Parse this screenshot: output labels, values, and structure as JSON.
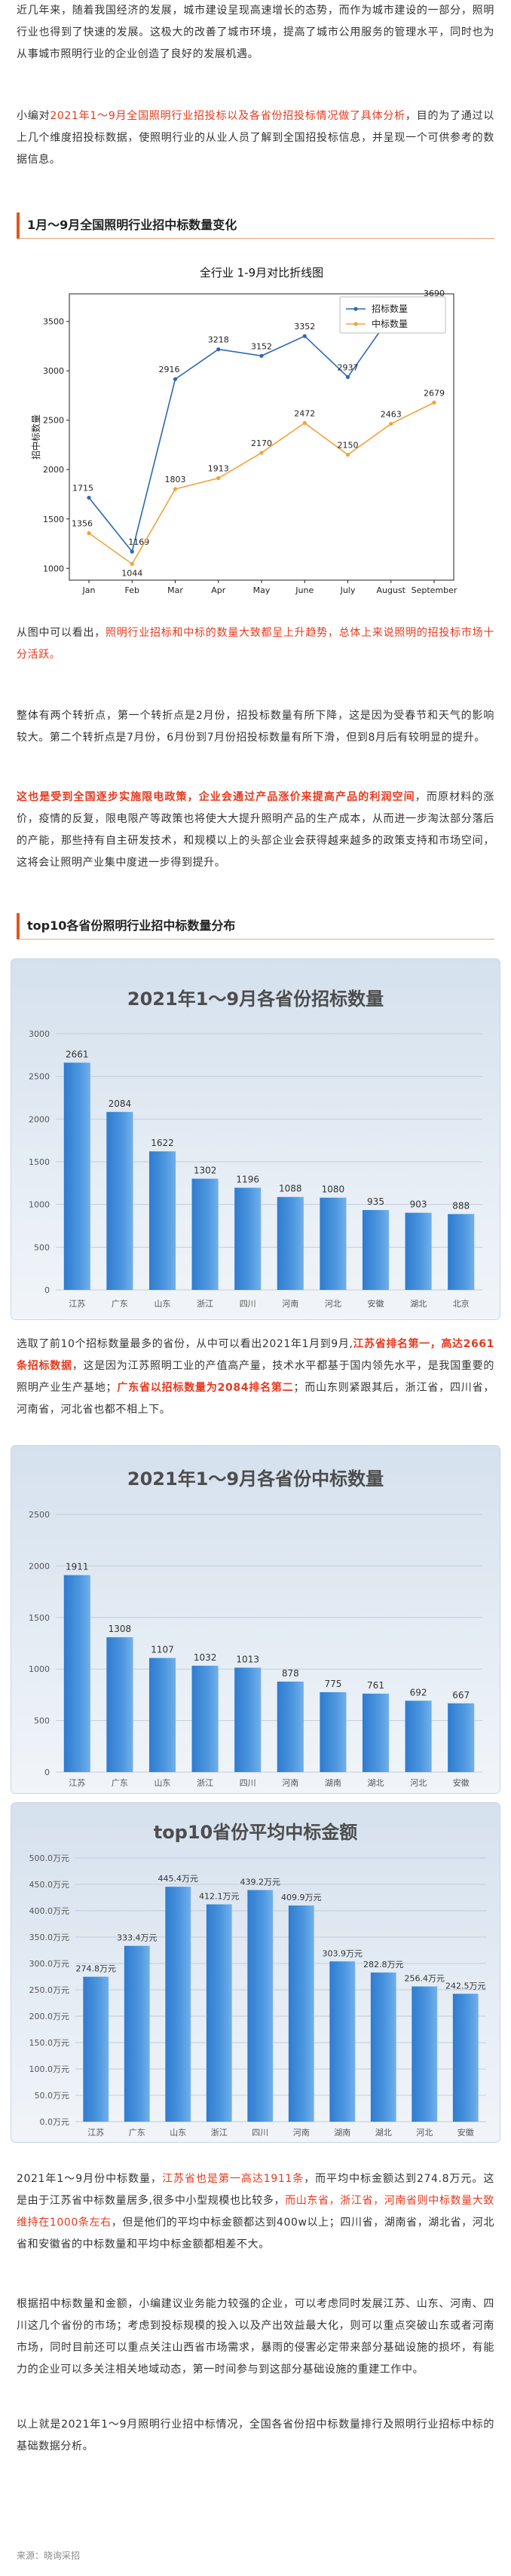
{
  "article": {
    "intro": "近几年来，随着我国经济的发展，城市建设呈现高速增长的态势，而作为城市建设的一部分，照明行业也得到了快速的发展。这极大的改善了城市环境，提高了城市公用服务的管理水平，同时也为从事城市照明行业的企业创造了良好的发展机遇。",
    "summary": [
      "小编对",
      "2021年1～9月全国照明行业招投标以及各省份招投标情况做了具体分析",
      "，目的为了通过以上几个维度招投标数据，使照明行业的从业人员了解到全国招投标信息，并呈现一个可供参考的数据信息。"
    ],
    "heading_monthly": "1月～9月全国照明行业招中标数量变化",
    "trend": [
      "从图中可以看出，",
      "照明行业招标和中标的数量大致都呈上升趋势，总体上来说照明的招投标市场十分活跃。"
    ],
    "turning_points": "整体有两个转折点，第一个转折点是2月份，招投标数量有所下降，这是因为受春节和天气的影响较大。第二个转折点是7月份，6月份到7月份招投标数量有所下滑，但到8月后有较明显的提升。",
    "policy": [
      "这也是受到全国逐步实施限电政策，企业会通过产品涨价来提高产品的利润空间",
      "，而原材料的涨价，疫情的反复，限电限产等政策也将使大大提升照明产品的生产成本，从而进一步淘汰部分落后的产能，那些持有自主研发技术，和规模以上的头部企业会获得越来越多的政策支持和市场空间，这将会让照明产业集中度进一步得到提升。"
    ],
    "heading_province": "top10各省份照明行业招中标数量分布",
    "tender_ranking": [
      "选取了前10个招标数量最多的省份，从中可以看出2021年1月到9月,",
      "江苏省排名第一，高达2661条招标数据",
      "，这是因为江苏照明工业的产值高产量，技术水平都基于国内领先水平，是我国重要的照明产业生产基地；",
      "广东省以招标数量为2084排名第二",
      "；而山东则紧跟其后，浙江省，四川省，河南省，河北省也都不相上下。"
    ],
    "award_ranking": [
      "2021年1～9月份中标数量，",
      "江苏省也是第一高达1911条",
      "，而平均中标金额达到274.8万元。这是由于江苏省中标数量居多,很多中小型规模也比较多，",
      "而山东省，浙江省，河南省则中标数量大致维持在1000条左右",
      "，但是他们的平均中标金额都达到400w以上；四川省，湖南省，湖北省，河北省和安徽省的中标数量和平均中标金额都相差不大。"
    ],
    "advice": "根据招中标数量和金额，小编建议业务能力较强的企业，可以考虑同时发展江苏、山东、河南、四川这几个省份的市场；考虑到投标规模的投入以及产出效益最大化，则可以重点突破山东或者河南市场，同时目前还可以重点关注山西省市场需求，暴雨的侵害必定带来部分基础设施的损坏，有能力的企业可以多关注相关地域动态，第一时间参与到这部分基础设施的重建工作中。",
    "conclusion": "以上就是2021年1～9月照明行业招中标情况，全国各省份招中标数量排行及照明行业招标中标的基础数据分析。",
    "source": "来源：晓询采招"
  },
  "colors": {
    "highlight_red": "#e6391e",
    "heading_bar": "#e2561d",
    "bar_blue": "#3d8ad6"
  },
  "chart_data": [
    {
      "type": "line",
      "title": "全行业 1-9月对比折线图",
      "xlabel": "",
      "ylabel": "招中标数量",
      "categories": [
        "Jan",
        "Feb",
        "Mar",
        "Apr",
        "May",
        "June",
        "July",
        "August",
        "September"
      ],
      "series": [
        {
          "name": "招标数量",
          "color": "#2e67b0",
          "values": [
            1715,
            1169,
            2916,
            3218,
            3152,
            3352,
            2937,
            3560,
            3690
          ]
        },
        {
          "name": "中标数量",
          "color": "#f2a23a",
          "values": [
            1356,
            1044,
            1803,
            1913,
            2170,
            2472,
            2150,
            2463,
            2679
          ]
        }
      ],
      "ylim": [
        880,
        3780
      ],
      "yticks": [
        1000,
        1500,
        2000,
        2500,
        3000,
        3500
      ],
      "grid": false,
      "legend": "top-right"
    },
    {
      "type": "bar",
      "title": "2021年1～9月各省份招标数量",
      "xlabel": "",
      "ylabel": "",
      "categories": [
        "江苏",
        "广东",
        "山东",
        "浙江",
        "四川",
        "河南",
        "河北",
        "安徽",
        "湖北",
        "北京"
      ],
      "values": [
        2661,
        2084,
        1622,
        1302,
        1196,
        1088,
        1080,
        935,
        903,
        888
      ],
      "ylim": [
        0,
        3000
      ],
      "yticks": [
        0,
        500,
        1000,
        1500,
        2000,
        2500,
        3000
      ],
      "grid": true
    },
    {
      "type": "bar",
      "title": "2021年1～9月各省份中标数量",
      "xlabel": "",
      "ylabel": "",
      "categories": [
        "江苏",
        "广东",
        "山东",
        "浙江",
        "四川",
        "河南",
        "湖南",
        "湖北",
        "河北",
        "安徽"
      ],
      "values": [
        1911,
        1308,
        1107,
        1032,
        1013,
        878,
        775,
        761,
        692,
        667
      ],
      "ylim": [
        0,
        2500
      ],
      "yticks": [
        0,
        500,
        1000,
        1500,
        2000,
        2500
      ],
      "grid": true
    },
    {
      "type": "bar",
      "title": "top10省份平均中标金额",
      "xlabel": "",
      "ylabel": "",
      "unit": "万元",
      "categories": [
        "江苏",
        "广东",
        "山东",
        "浙江",
        "四川",
        "河南",
        "湖南",
        "湖北",
        "河北",
        "安徽"
      ],
      "values": [
        274.8,
        333.4,
        445.4,
        412.1,
        439.2,
        409.9,
        303.9,
        282.8,
        256.4,
        242.5
      ],
      "ylim": [
        0,
        500
      ],
      "yticks": [
        0,
        50,
        100,
        150,
        200,
        250,
        300,
        350,
        400,
        450,
        500
      ],
      "grid": true
    }
  ]
}
